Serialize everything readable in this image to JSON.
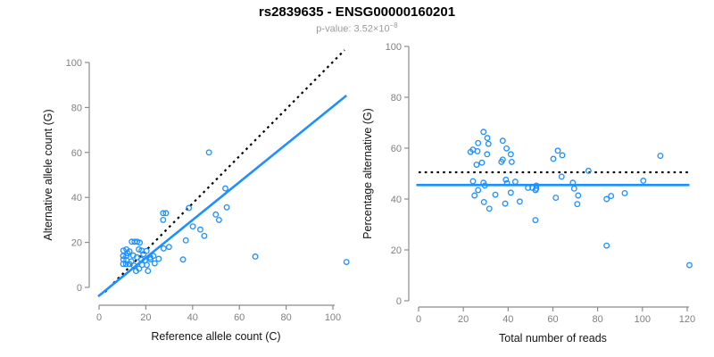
{
  "header": {
    "title": "rs2839635 - ENSG00000160201",
    "pvalue": {
      "main": "p-value: 3.52×10",
      "exponent": "−8"
    }
  },
  "colors": {
    "point": "#1e90ff",
    "fit_line": "#1e90ff",
    "reference_line": "#000000",
    "axis": "#8c8c8c",
    "tick_label": "#808080",
    "axis_title": "#141414",
    "title": "#000000",
    "subtitle": "#9b9b9b"
  },
  "chart_data": [
    {
      "type": "scatter",
      "name": "allele-counts-scatter",
      "xlabel": "Reference allele count (C)",
      "ylabel": "Alternative allele count (G)",
      "xlim": [
        0,
        106
      ],
      "ylim": [
        0,
        106
      ],
      "xticks": [
        0,
        20,
        40,
        60,
        80,
        100
      ],
      "yticks": [
        0,
        20,
        40,
        60,
        80,
        100
      ],
      "grid": false,
      "legend": "none",
      "lines": [
        {
          "name": "identity-dotted-line",
          "style": "dotted",
          "color": "#000000",
          "width": 2.2,
          "x1": 2.5,
          "y1": -2,
          "x2": 105,
          "y2": 105.5
        },
        {
          "name": "fit-line",
          "style": "solid",
          "color": "#1e90ff",
          "width": 2.6,
          "x1": -0.4,
          "y1": -4,
          "x2": 105.8,
          "y2": 85.3
        }
      ],
      "points": [
        [
          10.4,
          16.4
        ],
        [
          11.7,
          16.9
        ],
        [
          13,
          16
        ],
        [
          17,
          16.9
        ],
        [
          18.2,
          16.4
        ],
        [
          14,
          20.3
        ],
        [
          15.2,
          20.3
        ],
        [
          16.3,
          20.3
        ],
        [
          17.4,
          19.9
        ],
        [
          10.3,
          14
        ],
        [
          11.7,
          14
        ],
        [
          10.4,
          12.4
        ],
        [
          11.7,
          12.1
        ],
        [
          10.3,
          10.4
        ],
        [
          11.5,
          10.4
        ],
        [
          13,
          10.4
        ],
        [
          14.9,
          9.7
        ],
        [
          17.1,
          8.3
        ],
        [
          15.8,
          7.3
        ],
        [
          18.1,
          12.3
        ],
        [
          19.6,
          12
        ],
        [
          18.4,
          10
        ],
        [
          20.4,
          10
        ],
        [
          21.9,
          13.3
        ],
        [
          23.2,
          14
        ],
        [
          23.8,
          10.7
        ],
        [
          25.5,
          12.7
        ],
        [
          20.9,
          7.3
        ],
        [
          12.2,
          15.2
        ],
        [
          14.6,
          14.2
        ],
        [
          16.2,
          13.4
        ],
        [
          19,
          14.8
        ],
        [
          20.3,
          16.2
        ],
        [
          13.8,
          11.6
        ],
        [
          22,
          12.5
        ],
        [
          27.4,
          33
        ],
        [
          28.6,
          33
        ],
        [
          27.4,
          30
        ],
        [
          38.4,
          35.3
        ],
        [
          54.6,
          35.6
        ],
        [
          49.9,
          32.4
        ],
        [
          51.3,
          30
        ],
        [
          40.1,
          27.1
        ],
        [
          43.3,
          25.7
        ],
        [
          45,
          22.9
        ],
        [
          37.1,
          20.9
        ],
        [
          29.9,
          18
        ],
        [
          27.6,
          17.3
        ],
        [
          35.9,
          12.4
        ],
        [
          66.8,
          13.7
        ],
        [
          47,
          60
        ],
        [
          54,
          44
        ],
        [
          105.8,
          11.3
        ]
      ]
    },
    {
      "type": "scatter",
      "name": "percentage-alternative-scatter",
      "xlabel": "Total number of reads",
      "ylabel": "Percentage alternative (G)",
      "xlim": [
        0,
        122
      ],
      "ylim": [
        0,
        100
      ],
      "xticks": [
        0,
        20,
        40,
        60,
        80,
        100,
        120
      ],
      "yticks": [
        0,
        20,
        40,
        60,
        80,
        100
      ],
      "grid": false,
      "legend": "none",
      "lines": [
        {
          "name": "null-50pct-dotted-line",
          "style": "dotted",
          "color": "#000000",
          "width": 2.2,
          "x1": 0,
          "y1": 50.5,
          "x2": 120.5,
          "y2": 50.5
        },
        {
          "name": "fit-line",
          "style": "solid",
          "color": "#1e90ff",
          "width": 2.6,
          "x1": -1,
          "y1": 45.5,
          "x2": 121,
          "y2": 45.5
        }
      ],
      "points": [
        [
          29,
          66.4
        ],
        [
          30.7,
          64
        ],
        [
          26.6,
          62
        ],
        [
          37.6,
          62.9
        ],
        [
          31.2,
          61.7
        ],
        [
          23.2,
          58.5
        ],
        [
          24.3,
          59.4
        ],
        [
          26.3,
          58.8
        ],
        [
          30.6,
          57.6
        ],
        [
          39.3,
          59.9
        ],
        [
          41.2,
          57.6
        ],
        [
          28.3,
          54.3
        ],
        [
          25.9,
          53.5
        ],
        [
          37,
          54.6
        ],
        [
          37.6,
          55.5
        ],
        [
          41.6,
          54.6
        ],
        [
          24.3,
          47
        ],
        [
          29,
          46.4
        ],
        [
          29.6,
          45.3
        ],
        [
          39,
          47.6
        ],
        [
          39.5,
          46.2
        ],
        [
          43.2,
          46.8
        ],
        [
          26.6,
          43.5
        ],
        [
          25,
          41.4
        ],
        [
          34.3,
          41.7
        ],
        [
          29.2,
          38.8
        ],
        [
          31.6,
          36.2
        ],
        [
          38.7,
          38.2
        ],
        [
          41.2,
          42.5
        ],
        [
          45.2,
          39
        ],
        [
          48.9,
          44.4
        ],
        [
          50.9,
          44.4
        ],
        [
          52.6,
          45.3
        ],
        [
          52.6,
          44.1
        ],
        [
          52.2,
          43.5
        ],
        [
          52.2,
          31.7
        ],
        [
          62.2,
          59
        ],
        [
          64.2,
          57.2
        ],
        [
          60.2,
          55.8
        ],
        [
          63.9,
          48.8
        ],
        [
          75.9,
          51.1
        ],
        [
          68.9,
          46.4
        ],
        [
          69.5,
          44.1
        ],
        [
          71.3,
          41.4
        ],
        [
          61.3,
          40.5
        ],
        [
          70.9,
          38
        ],
        [
          84,
          40
        ],
        [
          86,
          41.2
        ],
        [
          92.1,
          42.3
        ],
        [
          100.4,
          47.2
        ],
        [
          108,
          57
        ],
        [
          84,
          21.7
        ],
        [
          121,
          14
        ]
      ]
    }
  ]
}
